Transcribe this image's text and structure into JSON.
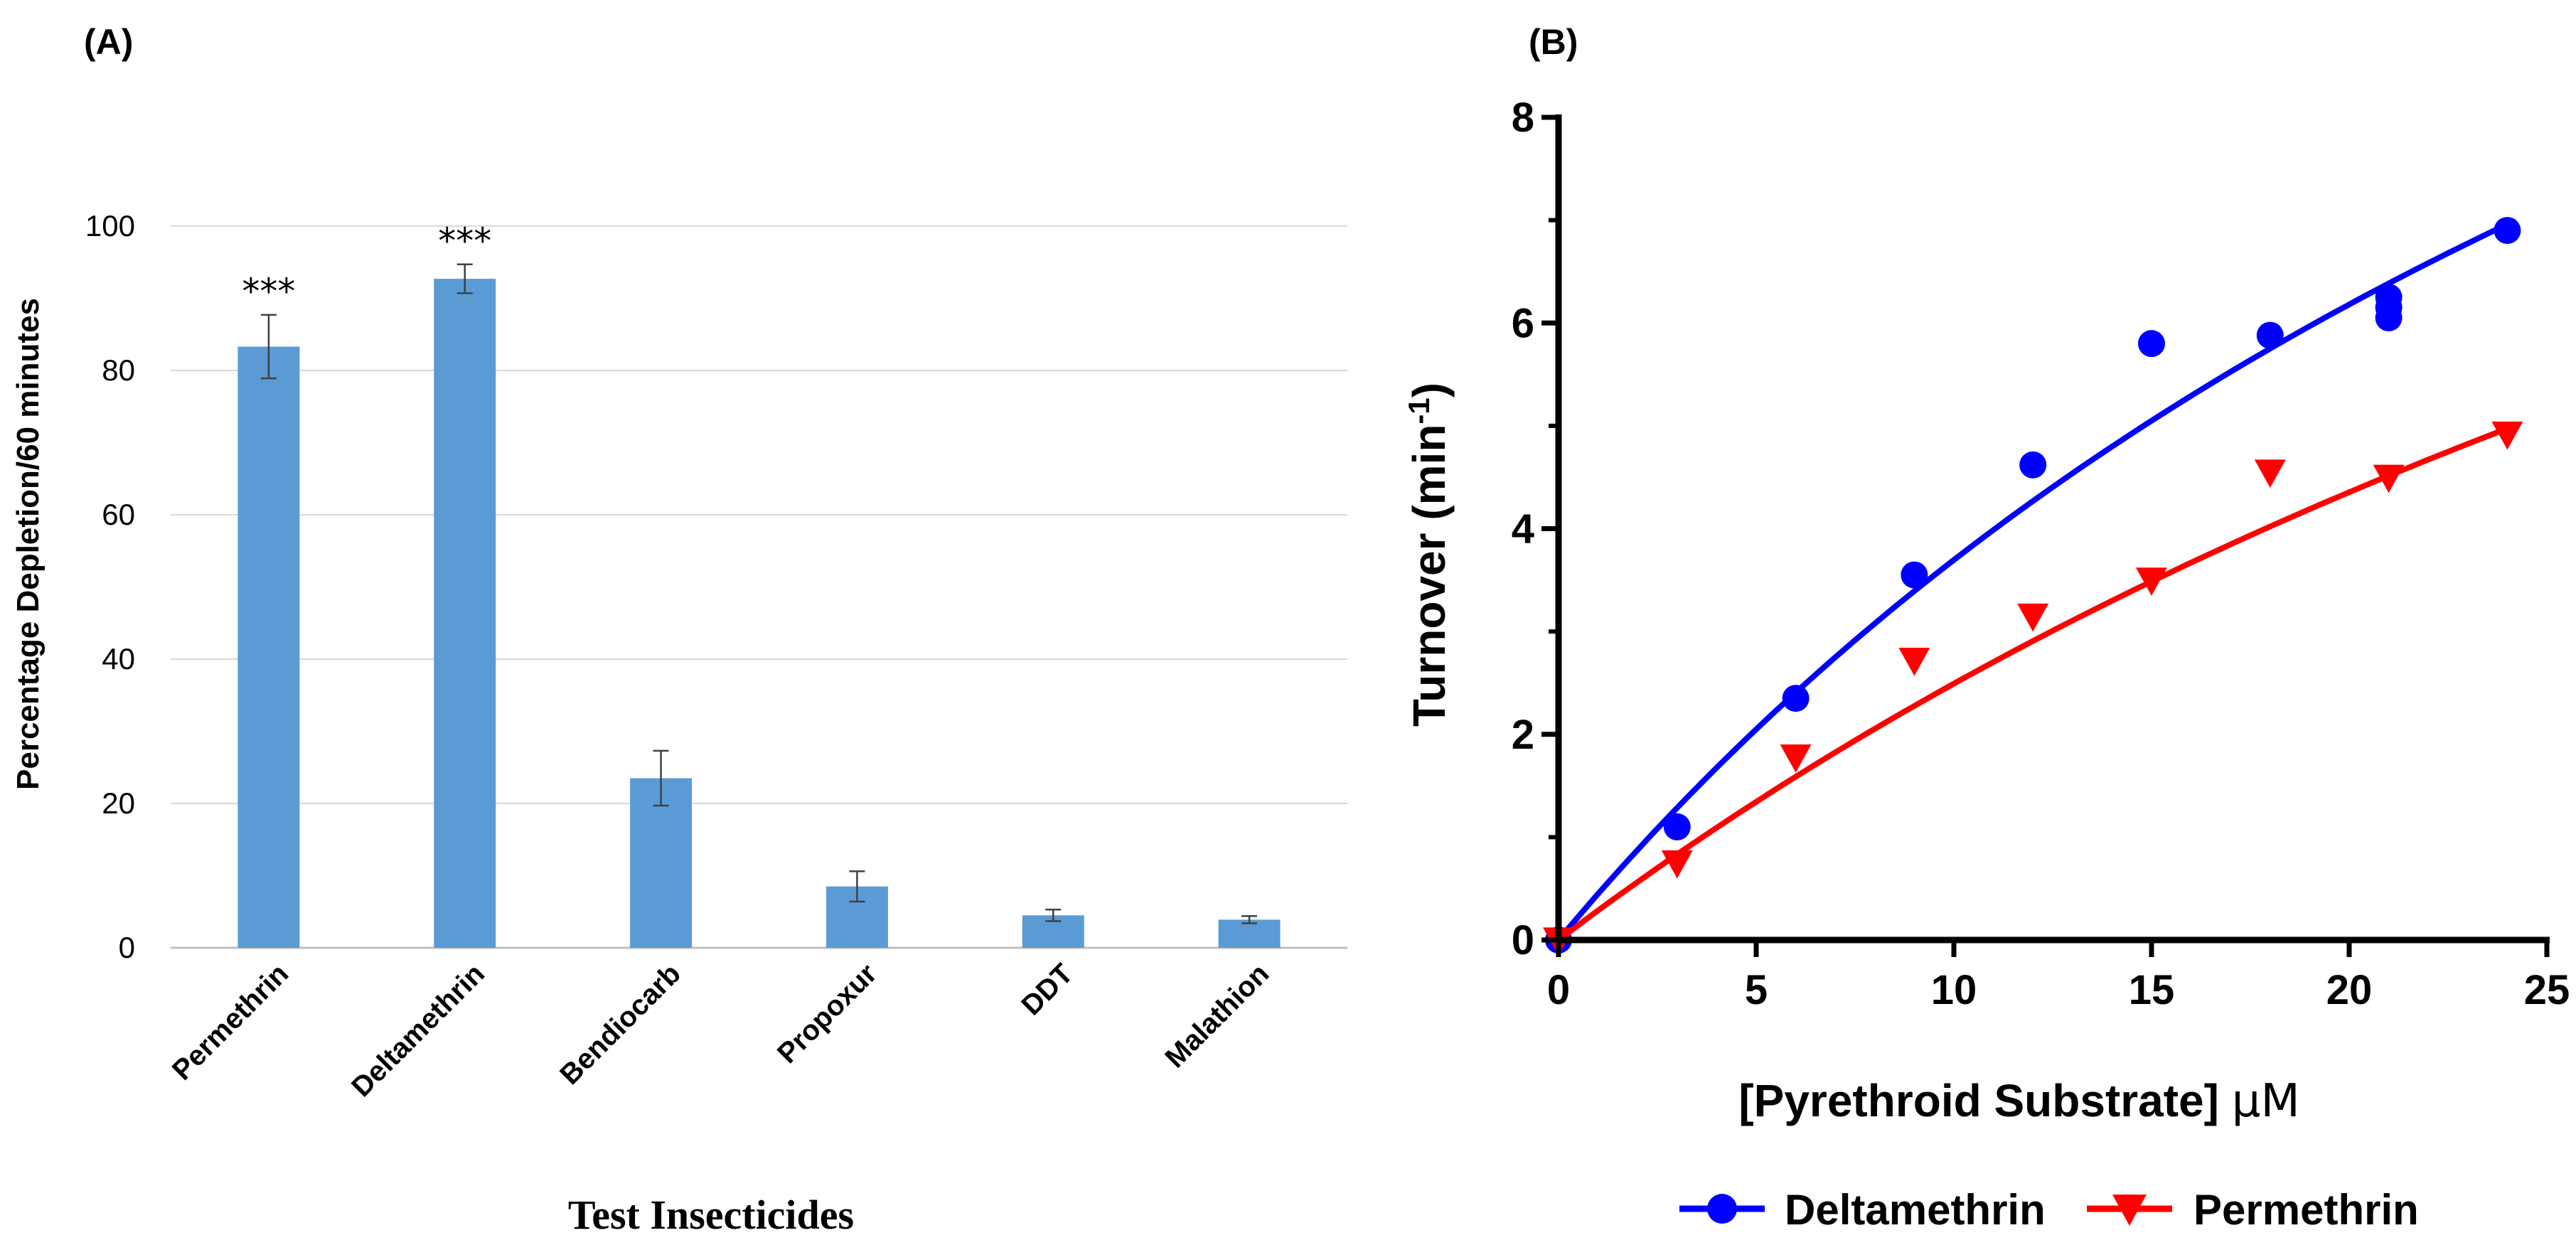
{
  "chart_data": [
    {
      "type": "bar",
      "panel_label": "(A)",
      "title": "",
      "xlabel": "Test Insecticides",
      "ylabel": "Percentage Depletion/60 minutes",
      "ylim": [
        0,
        100
      ],
      "yticks": [
        "0",
        "20",
        "40",
        "60",
        "80",
        "100"
      ],
      "grid": true,
      "bar_color": "#5b9bd5",
      "categories": [
        "Permethrin",
        "Deltamethrin",
        "Bendiocarb",
        "Propoxur",
        "DDT",
        "Malathion"
      ],
      "values": [
        83.3,
        92.7,
        23.5,
        8.5,
        4.5,
        3.9
      ],
      "errors": [
        4.4,
        2.0,
        3.8,
        2.1,
        0.8,
        0.5
      ],
      "annotations": [
        "***",
        "***",
        "",
        "",
        "",
        ""
      ]
    },
    {
      "type": "scatter",
      "panel_label": "(B)",
      "title": "",
      "xlabel_main": "[Pyrethroid Substrate] ",
      "xlabel_unit": "μM",
      "ylabel_main": "Turnover (min",
      "ylabel_sup": "-1",
      "ylabel_close": ")",
      "xlim": [
        0,
        25
      ],
      "ylim": [
        0,
        8
      ],
      "xticks": [
        "0",
        "5",
        "10",
        "15",
        "20",
        "25"
      ],
      "yticks": [
        "0",
        "2",
        "4",
        "6",
        "8"
      ],
      "grid": false,
      "legend_position": "bottom",
      "series": [
        {
          "name": "Deltamethrin",
          "color": "#0000ff",
          "marker": "circle",
          "points": [
            [
              0,
              0
            ],
            [
              3,
              1.1
            ],
            [
              6,
              2.35
            ],
            [
              9,
              3.55
            ],
            [
              12,
              4.62
            ],
            [
              15,
              5.8
            ],
            [
              18,
              5.88
            ],
            [
              21,
              6.05
            ],
            [
              21,
              6.15
            ],
            [
              21,
              6.25
            ],
            [
              24,
              6.9
            ]
          ],
          "fit": {
            "model": "michaelis-menten",
            "vmax": 18.85,
            "km": 41.0
          }
        },
        {
          "name": "Permethrin",
          "color": "#ff0000",
          "marker": "triangle-down",
          "points": [
            [
              0,
              0
            ],
            [
              3,
              0.75
            ],
            [
              6,
              1.78
            ],
            [
              9,
              2.72
            ],
            [
              12,
              3.15
            ],
            [
              15,
              3.5
            ],
            [
              18,
              4.55
            ],
            [
              21,
              4.5
            ],
            [
              24,
              4.92
            ]
          ],
          "fit": {
            "model": "michaelis-menten",
            "vmax": 17.2,
            "km": 59.0
          }
        }
      ]
    }
  ]
}
